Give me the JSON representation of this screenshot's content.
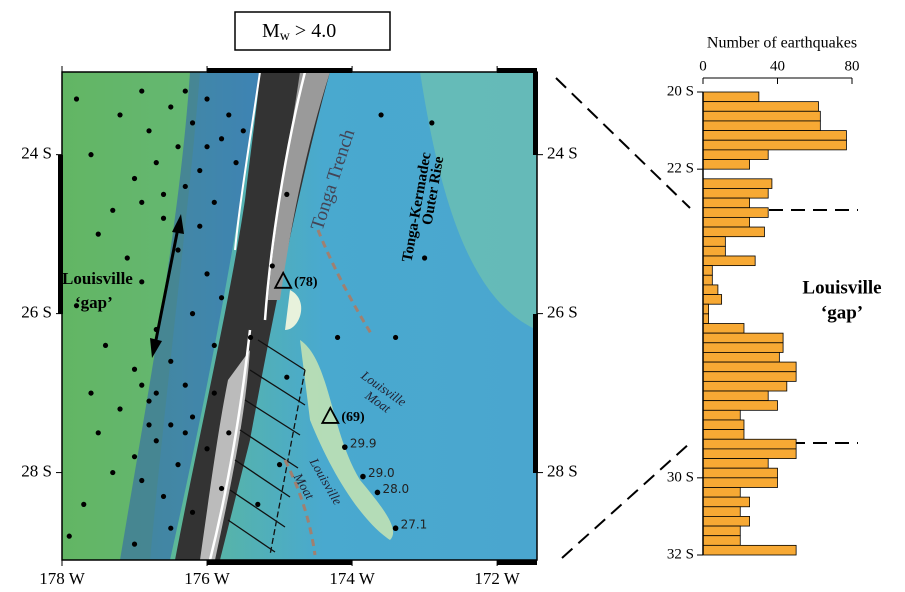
{
  "chart_data": [
    {
      "type": "scatter",
      "title": "M",
      "title_subscript": "w",
      "title_rest": " > 4.0",
      "x": [
        177.8,
        177.2,
        176.9,
        176.5,
        176.2,
        176.0,
        175.8,
        176.4,
        176.7,
        177.0,
        176.3,
        176.1,
        175.9,
        176.6,
        177.3,
        177.6,
        176.8,
        175.6,
        175.7,
        176.3,
        177.5,
        177.1,
        176.9,
        176.4,
        176.0,
        175.8,
        176.2,
        176.7,
        177.4,
        177.8,
        177.0,
        176.5,
        175.9,
        175.4,
        175.1,
        174.9,
        177.6,
        177.2,
        176.8,
        176.5,
        176.2,
        175.9,
        176.7,
        177.0,
        176.4,
        176.0,
        175.7,
        176.9,
        176.6,
        177.3,
        177.7,
        176.2,
        175.8,
        176.5,
        177.0,
        177.9,
        176.8,
        176.3,
        176.9,
        177.5,
        176.0,
        175.5,
        176.6,
        176.1,
        176.9,
        174.9,
        173.6,
        172.9,
        174.2,
        173.4,
        173.0,
        175.3,
        175.0,
        176.3,
        176.7
      ],
      "y": [
        23.3,
        23.5,
        23.2,
        23.4,
        23.6,
        23.3,
        23.8,
        23.9,
        24.1,
        24.3,
        24.4,
        24.2,
        24.6,
        24.8,
        24.7,
        24.0,
        23.7,
        24.1,
        23.5,
        23.2,
        25.0,
        25.3,
        25.6,
        25.2,
        25.5,
        25.8,
        26.0,
        26.2,
        26.4,
        25.9,
        26.7,
        26.6,
        26.4,
        26.3,
        25.4,
        26.8,
        27.0,
        27.2,
        27.1,
        27.4,
        27.3,
        27.0,
        27.6,
        27.8,
        27.9,
        27.7,
        27.5,
        28.1,
        28.3,
        28.0,
        28.4,
        28.5,
        28.2,
        28.7,
        28.9,
        28.8,
        27.4,
        26.9,
        26.9,
        27.5,
        23.9,
        23.7,
        24.5,
        24.9,
        24.6,
        24.5,
        23.5,
        23.6,
        26.3,
        26.3,
        25.3,
        28.4,
        27.9,
        27.5,
        27.0
      ],
      "color": "#000000",
      "xlim": [
        178,
        171.45
      ],
      "ylim": [
        22.96,
        29.1
      ],
      "xticks": [
        {
          "value": 178,
          "label": "178 W"
        },
        {
          "value": 176,
          "label": "176 W"
        },
        {
          "value": 174,
          "label": "174 W"
        },
        {
          "value": 172,
          "label": "172 W"
        }
      ],
      "yticks": [
        {
          "value": 24,
          "label": "24 S"
        },
        {
          "value": 26,
          "label": "26 S"
        },
        {
          "value": 28,
          "label": "28 S"
        }
      ],
      "annotations": [
        {
          "text": "Tonga Trench"
        },
        {
          "text": "Tonga-Kermadec"
        },
        {
          "text": "Outer Rise"
        },
        {
          "text": "Louisville"
        },
        {
          "text": "‘gap’"
        },
        {
          "text": "Louisville"
        },
        {
          "text": "Moat"
        },
        {
          "text": "Louisville"
        },
        {
          "text": "Moat"
        }
      ],
      "seamounts": [
        {
          "label": "29.9",
          "x": 174.1,
          "y": 27.68
        },
        {
          "label": "29.0",
          "x": 173.85,
          "y": 28.05
        },
        {
          "label": "28.0",
          "x": 173.65,
          "y": 28.25
        },
        {
          "label": "27.1",
          "x": 173.4,
          "y": 28.7
        }
      ],
      "triangles": [
        {
          "label": "(78)",
          "x": 174.95,
          "y": 25.6
        },
        {
          "label": "(69)",
          "x": 174.3,
          "y": 27.3
        }
      ]
    },
    {
      "type": "histogram",
      "orientation": "horizontal",
      "xlabel": "Number of earthquakes",
      "bins": [
        20,
        20.25,
        20.5,
        20.75,
        21,
        21.25,
        21.5,
        21.75,
        22,
        22.25,
        22.5,
        22.75,
        23,
        23.25,
        23.5,
        23.75,
        24,
        24.25,
        24.5,
        24.75,
        25,
        25.25,
        25.5,
        25.75,
        26,
        26.25,
        26.5,
        26.75,
        27,
        27.25,
        27.5,
        27.75,
        28,
        28.25,
        28.5,
        28.75,
        29,
        29.25,
        29.5,
        29.75,
        30,
        30.25,
        30.5,
        30.75,
        31,
        31.25,
        31.5,
        31.75,
        32
      ],
      "values": [
        30,
        62,
        63,
        63,
        77,
        77,
        35,
        25,
        0,
        37,
        35,
        25,
        35,
        25,
        33,
        12,
        12,
        28,
        5,
        5,
        8,
        10,
        3,
        3,
        22,
        43,
        43,
        41,
        50,
        50,
        45,
        35,
        40,
        20,
        22,
        22,
        50,
        50,
        35,
        40,
        40,
        20,
        25,
        20,
        25,
        20,
        20,
        50
      ],
      "color": "#f7a934",
      "xlim": [
        0,
        80
      ],
      "xticks": [
        0,
        40,
        80
      ],
      "ylim": [
        20,
        32
      ],
      "yticks": [
        {
          "value": 20,
          "label": "20 S"
        },
        {
          "value": 22,
          "label": "22 S"
        },
        {
          "value": 30,
          "label": "30 S"
        },
        {
          "value": 32,
          "label": "32 S"
        }
      ],
      "annotations": [
        {
          "text": "Louisville"
        },
        {
          "text": "‘gap’"
        }
      ]
    }
  ]
}
